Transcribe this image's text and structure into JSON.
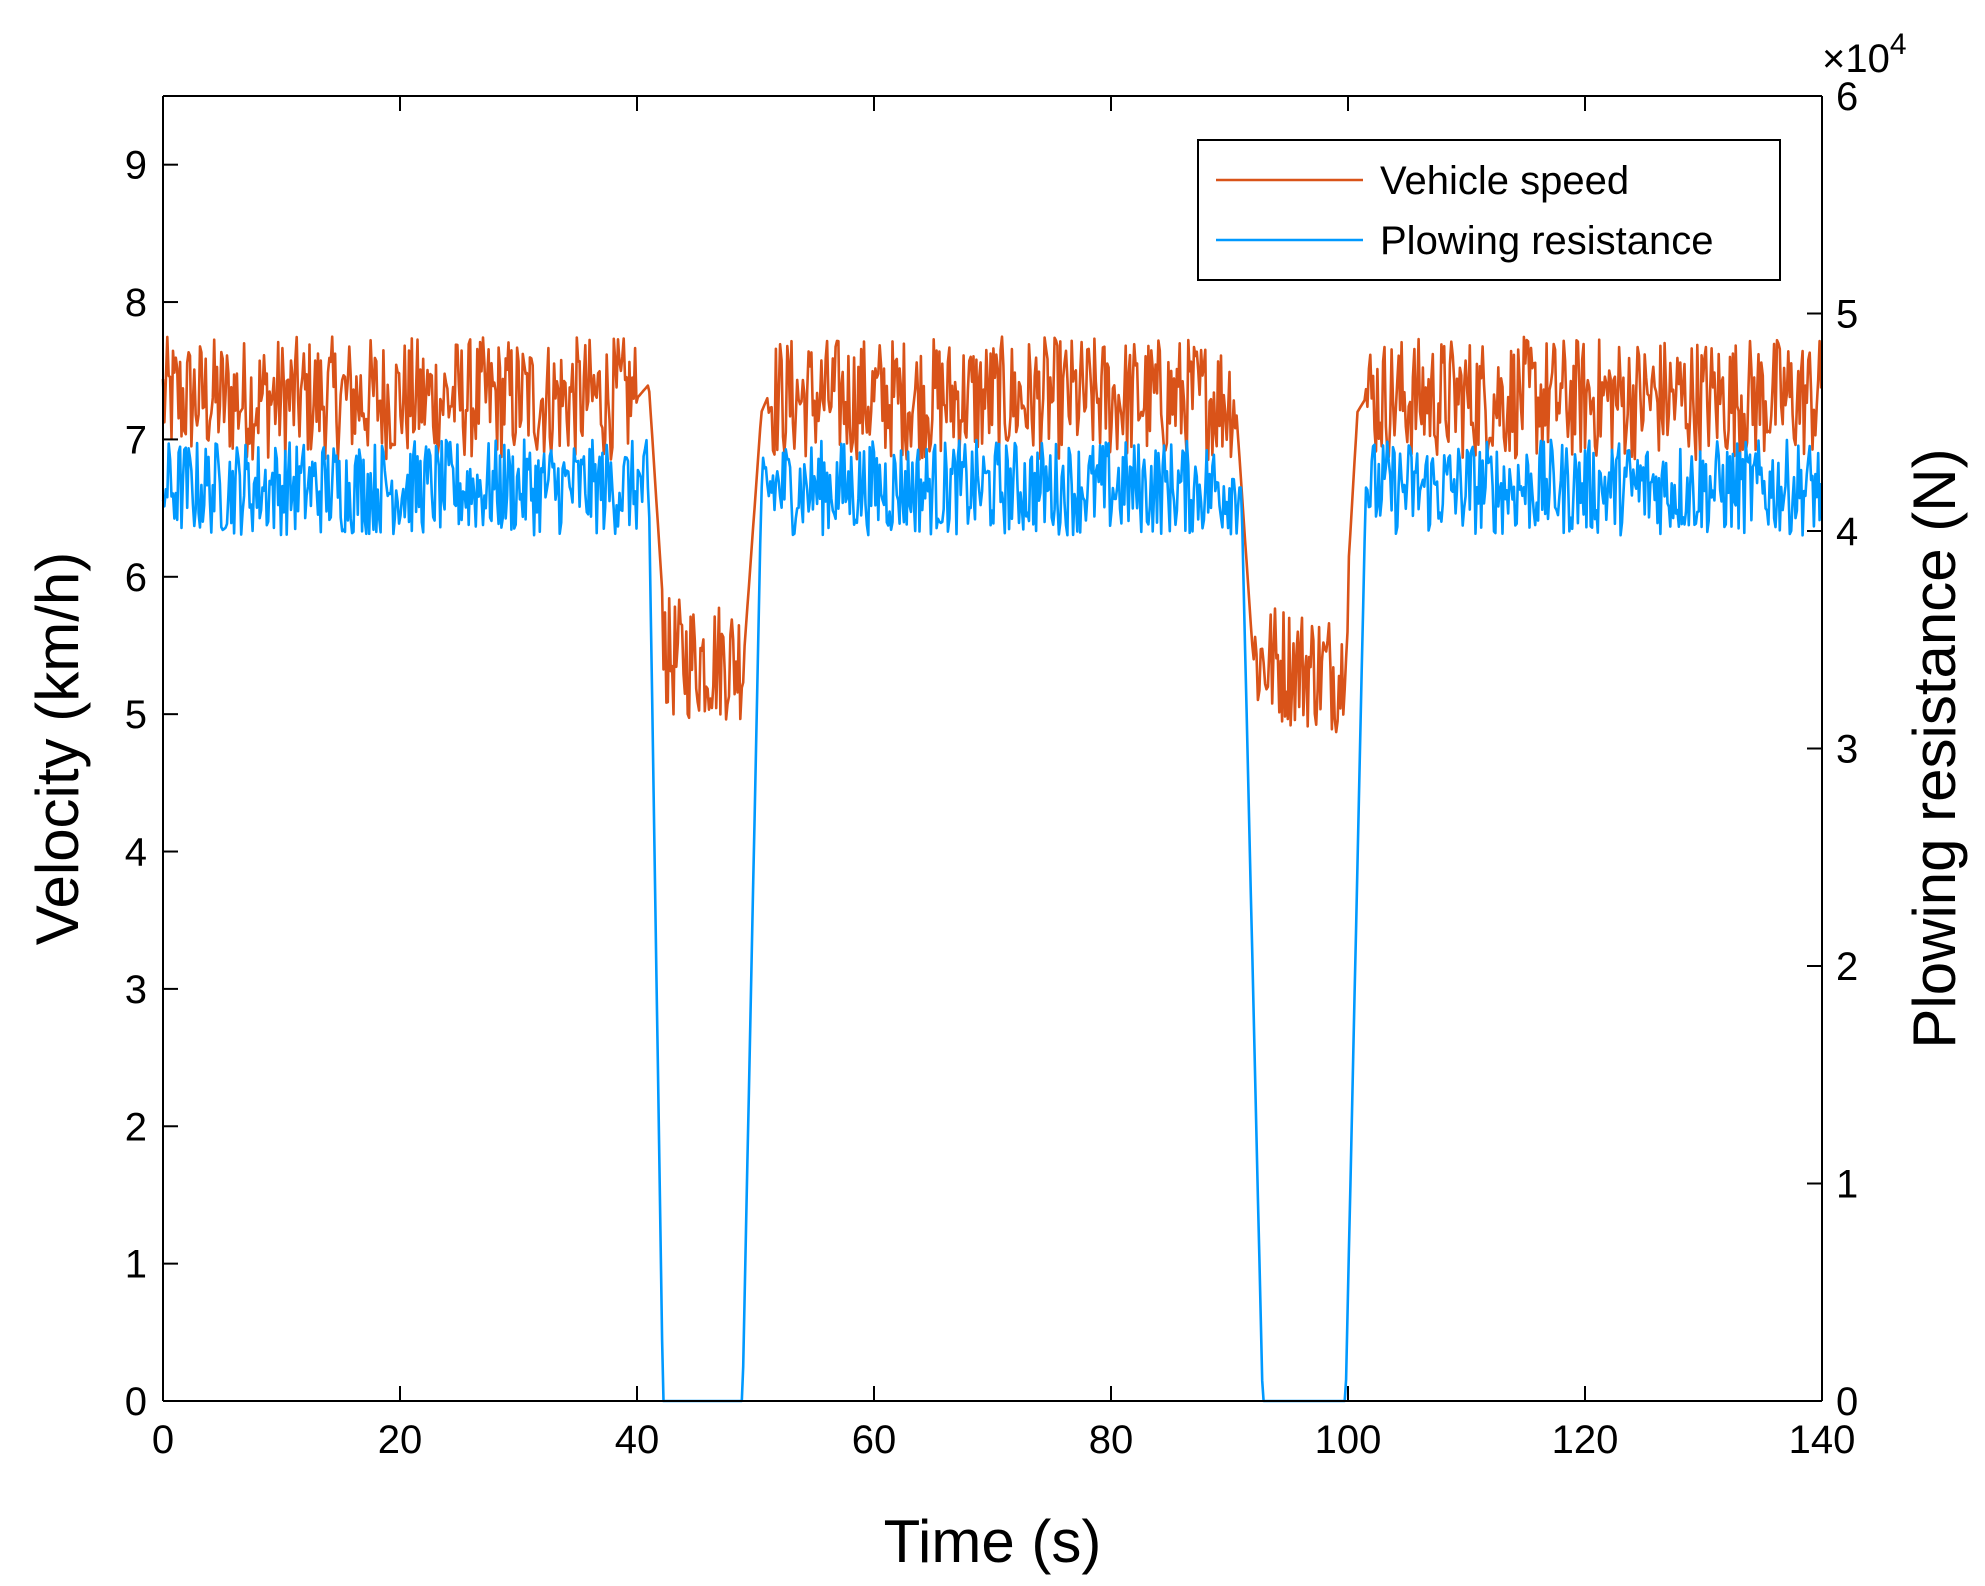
{
  "chart_data": {
    "type": "line",
    "title": "",
    "xlabel": "Time (s)",
    "ylabel_left": "Velocity (km/h)",
    "ylabel_right": "Plowing resistance (N)",
    "xlim": [
      0,
      140
    ],
    "ylim_left": [
      0,
      9.5
    ],
    "ylim_right": [
      0,
      60000
    ],
    "x_ticks": [
      0,
      20,
      40,
      60,
      80,
      100,
      120,
      140
    ],
    "y_left_ticks": [
      0,
      1,
      2,
      3,
      4,
      5,
      6,
      7,
      8,
      9
    ],
    "y_right_ticks": [
      0,
      1,
      2,
      3,
      4,
      5,
      6
    ],
    "y_right_multiplier_base": "×10",
    "y_right_multiplier_exp": "4",
    "grid": false,
    "legend_position": "top-right",
    "series": [
      {
        "name": "Vehicle speed",
        "axis": "left",
        "color": "#D95319",
        "noise_amplitude": 0.45,
        "keypoints": [
          [
            0,
            7.3
          ],
          [
            40,
            7.3
          ],
          [
            41,
            7.4
          ],
          [
            42.5,
            5.4
          ],
          [
            49,
            5.4
          ],
          [
            50.5,
            7.2
          ],
          [
            51,
            7.3
          ],
          [
            90.5,
            7.3
          ],
          [
            92,
            5.4
          ],
          [
            99.5,
            5.3
          ],
          [
            100.8,
            7.2
          ],
          [
            101.5,
            7.3
          ],
          [
            140,
            7.3
          ]
        ],
        "quiet_ranges": [
          [
            40,
            42.2
          ],
          [
            49,
            51
          ],
          [
            90.5,
            92
          ],
          [
            100,
            101.5
          ]
        ]
      },
      {
        "name": "Plowing resistance",
        "axis": "right",
        "color": "#0099FF",
        "noise_amplitude": 2200,
        "keypoints": [
          [
            0,
            42000
          ],
          [
            40.5,
            42000
          ],
          [
            41,
            42000
          ],
          [
            42.2,
            0
          ],
          [
            48.9,
            0
          ],
          [
            50.5,
            42000
          ],
          [
            90.5,
            42000
          ],
          [
            91,
            42000
          ],
          [
            92.8,
            0
          ],
          [
            99.8,
            0
          ],
          [
            101.5,
            42000
          ],
          [
            140,
            42000
          ]
        ],
        "quiet_ranges": [
          [
            40.8,
            50.6
          ],
          [
            90.8,
            101.6
          ]
        ]
      }
    ]
  }
}
